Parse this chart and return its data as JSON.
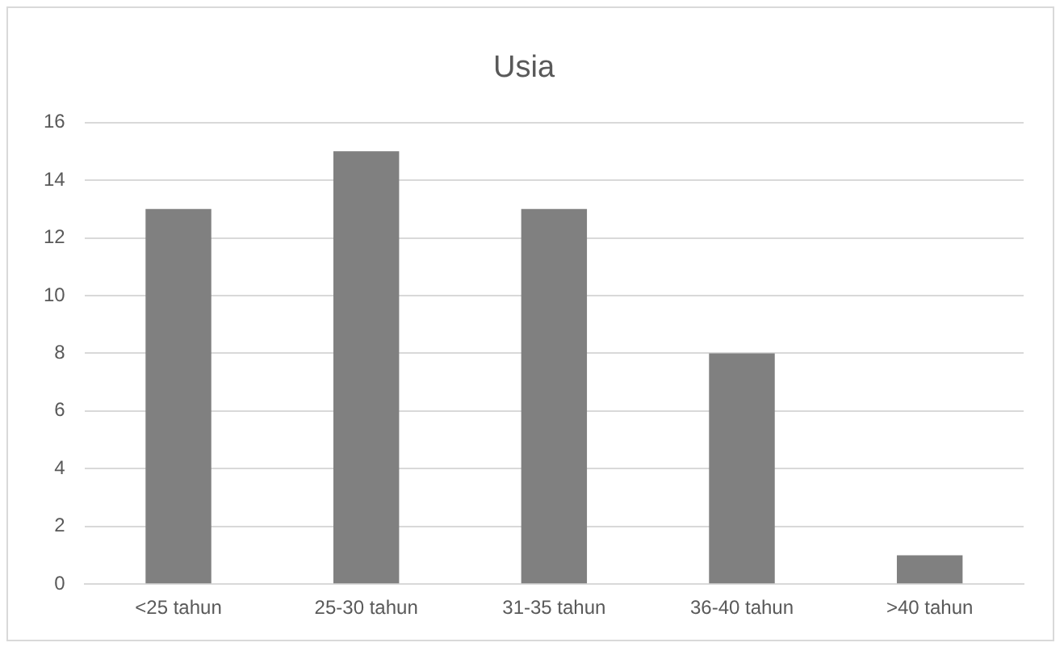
{
  "chart_data": {
    "type": "bar",
    "title": "Usia",
    "categories": [
      "<25 tahun",
      "25-30 tahun",
      "31-35 tahun",
      "36-40 tahun",
      ">40 tahun"
    ],
    "values": [
      13,
      15,
      13,
      8,
      1
    ],
    "color": "#808080",
    "ylim": [
      0,
      16
    ],
    "yticks": [
      0,
      2,
      4,
      6,
      8,
      10,
      12,
      14,
      16
    ],
    "grid": "y",
    "legend": false
  }
}
